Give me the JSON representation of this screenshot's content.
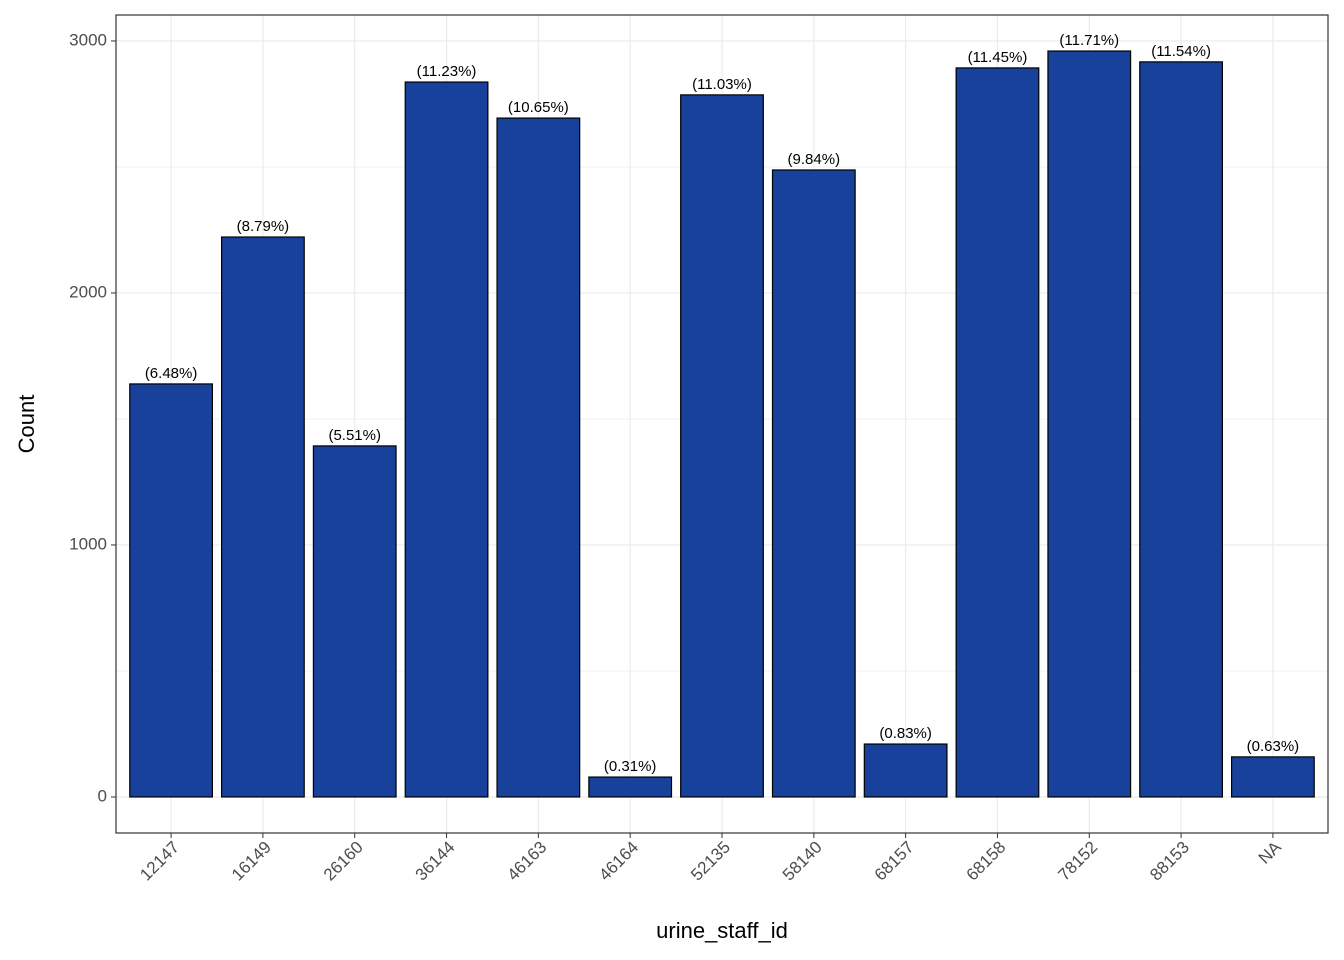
{
  "chart_data": {
    "type": "bar",
    "x_label": "urine_staff_id",
    "y_label": "Count",
    "categories": [
      "12147",
      "16149",
      "26160",
      "36144",
      "46163",
      "46164",
      "52135",
      "58140",
      "68157",
      "68158",
      "78152",
      "88153",
      "NA"
    ],
    "values": [
      1639,
      2222,
      1393,
      2837,
      2694,
      79,
      2786,
      2488,
      210,
      2893,
      2960,
      2917,
      159
    ],
    "percents": [
      6.48,
      8.79,
      5.51,
      11.23,
      10.65,
      0.31,
      11.03,
      9.84,
      0.83,
      11.45,
      11.71,
      11.54,
      0.63
    ],
    "percent_labels": [
      "(6.48%)",
      "(8.79%)",
      "(5.51%)",
      "(11.23%)",
      "(10.65%)",
      "(0.31%)",
      "(11.03%)",
      "(9.84%)",
      "(0.83%)",
      "(11.45%)",
      "(11.71%)",
      "(11.54%)",
      "(0.63%)"
    ],
    "color": "#17419a",
    "ylim": [
      -143,
      3103
    ],
    "yticks": [
      0,
      1000,
      2000,
      3000
    ],
    "grid": true
  }
}
